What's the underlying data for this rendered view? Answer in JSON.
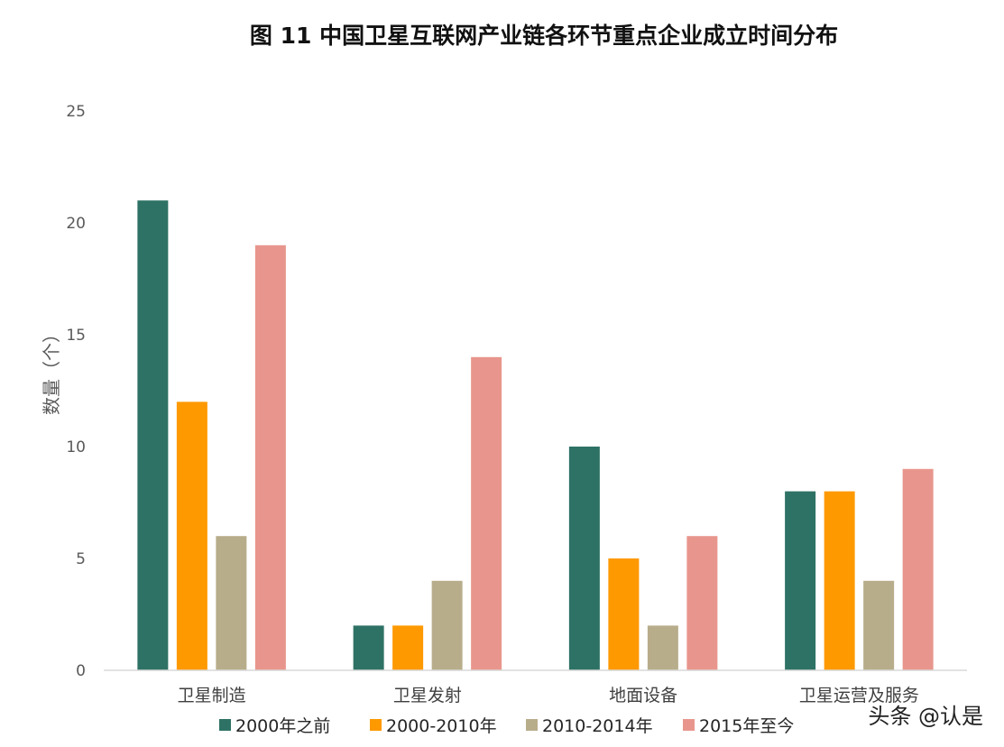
{
  "chart_data": {
    "type": "bar",
    "title": "图 11  中国卫星互联网产业链各环节重点企业成立时间分布",
    "ylabel": "数量（个）",
    "xlabel": "",
    "ylim": [
      0,
      25
    ],
    "yticks": [
      0,
      5,
      10,
      15,
      20,
      25
    ],
    "grid": false,
    "legend_position": "bottom",
    "categories": [
      "卫星制造",
      "卫星发射",
      "地面设备",
      "卫星运营及服务"
    ],
    "series": [
      {
        "name": "2000年之前",
        "color": "#2e7265",
        "values": [
          21,
          2,
          10,
          8
        ]
      },
      {
        "name": "2000-2010年",
        "color": "#ff9900",
        "values": [
          12,
          2,
          5,
          8
        ]
      },
      {
        "name": "2010-2014年",
        "color": "#b8ad8b",
        "values": [
          6,
          4,
          2,
          4
        ]
      },
      {
        "name": "2015年至今",
        "color": "#e8968d",
        "values": [
          19,
          14,
          6,
          9
        ]
      }
    ]
  },
  "watermark": "头条 @认是"
}
